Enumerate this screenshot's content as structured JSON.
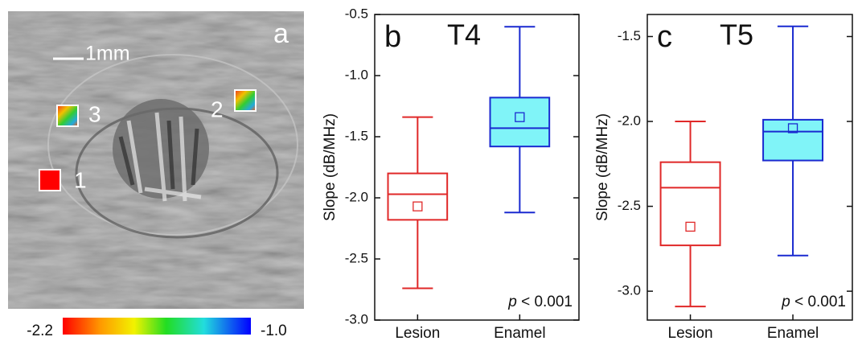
{
  "image_panel": {
    "label": "a",
    "scale_bar": "1mm",
    "regions": [
      "1",
      "2",
      "3"
    ],
    "colorbar": {
      "lim": [
        -2.2,
        -1
      ],
      "ticks": [
        -2.2,
        {
          "value": -1,
          "label": "-1.0"
        }
      ]
    }
  },
  "chart_data": [
    {
      "type": "box",
      "label": "b",
      "title": "T4",
      "ylabel": "Slope (dB/MHz)",
      "annotation": {
        "symbol": "p",
        "text": "< 0.001"
      },
      "categories": [
        "Lesion",
        "Enamel"
      ],
      "boxes": [
        {
          "color": "#e02828",
          "fill": "none",
          "whisker_low": -2.74,
          "q1": -2.18,
          "median": -1.97,
          "q3": -1.8,
          "whisker_high": -1.34,
          "mean": -2.07
        },
        {
          "color": "#1a2ad0",
          "fill": "#80f4f8",
          "whisker_low": -2.12,
          "q1": -1.58,
          "median": -1.43,
          "q3": -1.18,
          "whisker_high": -0.6,
          "mean": -1.34
        }
      ],
      "ylim": [
        -3,
        -0.5
      ],
      "yticks": [
        {
          "value": -3,
          "label": "-3.0"
        },
        -2.5,
        {
          "value": -2,
          "label": "-2.0"
        },
        -1.5,
        {
          "value": -1,
          "label": "-1.0"
        },
        -0.5
      ]
    },
    {
      "type": "box",
      "label": "c",
      "title": "T5",
      "ylabel": "Slope (dB/MHz)",
      "annotation": {
        "symbol": "p",
        "text": "< 0.001"
      },
      "categories": [
        "Lesion",
        "Enamel"
      ],
      "boxes": [
        {
          "color": "#e02828",
          "fill": "none",
          "whisker_low": -3.09,
          "q1": -2.73,
          "median": -2.39,
          "q3": -2.24,
          "whisker_high": -2.0,
          "mean": -2.62
        },
        {
          "color": "#1a2ad0",
          "fill": "#80f4f8",
          "whisker_low": -2.79,
          "q1": -2.23,
          "median": -2.06,
          "q3": -1.99,
          "whisker_high": -1.44,
          "mean": -2.04
        }
      ],
      "ylim": [
        -3.17,
        -1.37
      ],
      "yticks": [
        {
          "value": -3,
          "label": "-3.0"
        },
        -2.5,
        {
          "value": -2,
          "label": "-2.0"
        },
        -1.5
      ]
    }
  ]
}
